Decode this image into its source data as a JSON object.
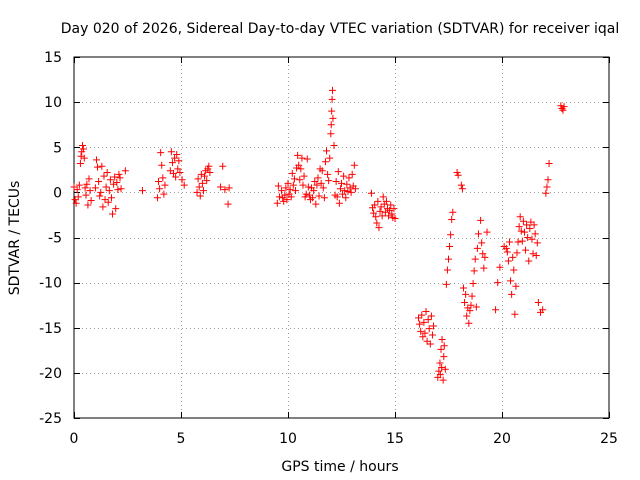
{
  "chart_data": {
    "type": "scatter",
    "title": "Day 020 of 2026, Sidereal Day-to-day VTEC variation (SDTVAR) for receiver iqal",
    "xlabel": "GPS time / hours",
    "ylabel": "SDTVAR / TECUs",
    "xlim": [
      0,
      25
    ],
    "ylim": [
      -25,
      15
    ],
    "xticks": [
      0,
      5,
      10,
      15,
      20,
      25
    ],
    "yticks": [
      15,
      10,
      5,
      0,
      -5,
      -10,
      -15,
      -20,
      -25
    ],
    "grid": true,
    "marker": "+",
    "color": "#ff0000",
    "series": [
      {
        "name": "SDTVAR",
        "points": [
          [
            0.0,
            0.6
          ],
          [
            0.05,
            -0.8
          ],
          [
            0.1,
            -1.2
          ],
          [
            0.15,
            0.3
          ],
          [
            0.2,
            -0.5
          ],
          [
            0.25,
            0.8
          ],
          [
            0.3,
            3.2
          ],
          [
            0.33,
            4.0
          ],
          [
            0.36,
            4.5
          ],
          [
            0.4,
            5.2
          ],
          [
            0.44,
            4.8
          ],
          [
            0.48,
            3.8
          ],
          [
            0.52,
            0.5
          ],
          [
            0.56,
            -0.3
          ],
          [
            0.6,
            0.9
          ],
          [
            0.65,
            -1.4
          ],
          [
            0.7,
            1.5
          ],
          [
            0.75,
            0.2
          ],
          [
            0.8,
            -0.9
          ],
          [
            1.0,
            0.5
          ],
          [
            1.05,
            3.6
          ],
          [
            1.1,
            2.8
          ],
          [
            1.15,
            1.2
          ],
          [
            1.2,
            -0.4
          ],
          [
            1.25,
            0.0
          ],
          [
            1.3,
            2.9
          ],
          [
            1.35,
            -1.6
          ],
          [
            1.4,
            1.8
          ],
          [
            1.45,
            -0.8
          ],
          [
            1.5,
            0.6
          ],
          [
            1.55,
            2.2
          ],
          [
            1.6,
            -1.1
          ],
          [
            1.65,
            0.2
          ],
          [
            1.7,
            1.4
          ],
          [
            1.75,
            -0.6
          ],
          [
            1.8,
            -2.4
          ],
          [
            1.85,
            0.9
          ],
          [
            1.9,
            1.7
          ],
          [
            1.95,
            -1.8
          ],
          [
            2.0,
            1.1
          ],
          [
            2.05,
            0.3
          ],
          [
            2.1,
            2.0
          ],
          [
            2.15,
            1.6
          ],
          [
            2.2,
            0.4
          ],
          [
            2.4,
            2.4
          ],
          [
            3.2,
            0.2
          ],
          [
            3.9,
            -0.6
          ],
          [
            3.95,
            1.2
          ],
          [
            4.0,
            0.4
          ],
          [
            4.05,
            4.4
          ],
          [
            4.1,
            3.0
          ],
          [
            4.15,
            1.6
          ],
          [
            4.2,
            -0.2
          ],
          [
            4.25,
            0.8
          ],
          [
            4.5,
            2.4
          ],
          [
            4.55,
            4.5
          ],
          [
            4.6,
            3.3
          ],
          [
            4.65,
            2.1
          ],
          [
            4.7,
            3.8
          ],
          [
            4.75,
            1.7
          ],
          [
            4.8,
            4.2
          ],
          [
            4.85,
            2.6
          ],
          [
            4.9,
            3.5
          ],
          [
            4.95,
            2.2
          ],
          [
            5.05,
            1.4
          ],
          [
            5.15,
            0.8
          ],
          [
            5.75,
            0.0
          ],
          [
            5.8,
            1.5
          ],
          [
            5.85,
            0.6
          ],
          [
            5.9,
            -0.4
          ],
          [
            5.95,
            2.0
          ],
          [
            6.0,
            1.0
          ],
          [
            6.05,
            0.2
          ],
          [
            6.1,
            1.8
          ],
          [
            6.15,
            2.4
          ],
          [
            6.2,
            1.3
          ],
          [
            6.25,
            2.6
          ],
          [
            6.3,
            2.9
          ],
          [
            6.35,
            2.2
          ],
          [
            6.85,
            0.6
          ],
          [
            6.95,
            2.9
          ],
          [
            7.05,
            0.3
          ],
          [
            7.2,
            -1.3
          ],
          [
            7.25,
            0.5
          ],
          [
            9.5,
            -1.2
          ],
          [
            9.55,
            0.7
          ],
          [
            9.6,
            -0.5
          ],
          [
            9.7,
            0.2
          ],
          [
            9.75,
            -0.6
          ],
          [
            9.8,
            -1.0
          ],
          [
            9.85,
            -0.3
          ],
          [
            9.9,
            0.5
          ],
          [
            9.95,
            -0.8
          ],
          [
            10.0,
            1.0
          ],
          [
            10.05,
            -0.2
          ],
          [
            10.1,
            0.3
          ],
          [
            10.15,
            -0.5
          ],
          [
            10.2,
            2.1
          ],
          [
            10.25,
            0.8
          ],
          [
            10.3,
            1.5
          ],
          [
            10.35,
            0.2
          ],
          [
            10.4,
            2.7
          ],
          [
            10.45,
            4.1
          ],
          [
            10.5,
            3.0
          ],
          [
            10.55,
            1.4
          ],
          [
            10.6,
            2.6
          ],
          [
            10.65,
            3.8
          ],
          [
            10.7,
            0.8
          ],
          [
            10.75,
            1.8
          ],
          [
            10.8,
            -0.5
          ],
          [
            10.85,
            -0.2
          ],
          [
            10.9,
            3.7
          ],
          [
            10.95,
            0.6
          ],
          [
            11.0,
            -0.3
          ],
          [
            11.05,
            -0.8
          ],
          [
            11.1,
            0.5
          ],
          [
            11.15,
            -0.6
          ],
          [
            11.2,
            0.2
          ],
          [
            11.25,
            1.2
          ],
          [
            11.3,
            -1.3
          ],
          [
            11.35,
            0.8
          ],
          [
            11.4,
            1.6
          ],
          [
            11.45,
            -0.4
          ],
          [
            11.5,
            2.6
          ],
          [
            11.55,
            1.0
          ],
          [
            11.6,
            2.4
          ],
          [
            11.65,
            0.5
          ],
          [
            11.7,
            -0.6
          ],
          [
            11.75,
            3.4
          ],
          [
            11.8,
            4.6
          ],
          [
            11.85,
            2.0
          ],
          [
            11.9,
            1.3
          ],
          [
            11.95,
            3.8
          ],
          [
            12.0,
            6.5
          ],
          [
            12.02,
            7.5
          ],
          [
            12.04,
            9.0
          ],
          [
            12.06,
            10.3
          ],
          [
            12.08,
            11.3
          ],
          [
            12.1,
            8.2
          ],
          [
            12.15,
            5.2
          ],
          [
            12.2,
            -0.3
          ],
          [
            12.25,
            1.2
          ],
          [
            12.3,
            -0.5
          ],
          [
            12.35,
            2.3
          ],
          [
            12.4,
            -1.2
          ],
          [
            12.45,
            0.4
          ],
          [
            12.5,
            1.0
          ],
          [
            12.55,
            -0.2
          ],
          [
            12.6,
            1.8
          ],
          [
            12.65,
            0.2
          ],
          [
            12.7,
            -0.6
          ],
          [
            12.75,
            0.9
          ],
          [
            12.8,
            0.1
          ],
          [
            12.85,
            1.6
          ],
          [
            12.9,
            0.5
          ],
          [
            12.95,
            0.0
          ],
          [
            13.0,
            2.0
          ],
          [
            13.05,
            0.7
          ],
          [
            13.1,
            3.0
          ],
          [
            13.15,
            0.4
          ],
          [
            13.9,
            -0.1
          ],
          [
            13.95,
            -1.7
          ],
          [
            14.0,
            -2.3
          ],
          [
            14.05,
            -1.4
          ],
          [
            14.1,
            -2.7
          ],
          [
            14.15,
            -3.4
          ],
          [
            14.2,
            -1.0
          ],
          [
            14.25,
            -3.9
          ],
          [
            14.3,
            -2.1
          ],
          [
            14.35,
            -1.6
          ],
          [
            14.4,
            -2.6
          ],
          [
            14.45,
            -0.5
          ],
          [
            14.5,
            -1.3
          ],
          [
            14.55,
            -2.2
          ],
          [
            14.6,
            -1.0
          ],
          [
            14.65,
            -1.8
          ],
          [
            14.7,
            -2.6
          ],
          [
            14.75,
            -2.0
          ],
          [
            14.8,
            -1.4
          ],
          [
            14.85,
            -2.4
          ],
          [
            14.9,
            -2.8
          ],
          [
            14.95,
            -1.8
          ],
          [
            15.0,
            -2.9
          ],
          [
            16.1,
            -13.9
          ],
          [
            16.15,
            -14.6
          ],
          [
            16.2,
            -15.4
          ],
          [
            16.25,
            -13.6
          ],
          [
            16.3,
            -16.0
          ],
          [
            16.35,
            -14.4
          ],
          [
            16.4,
            -15.6
          ],
          [
            16.45,
            -13.2
          ],
          [
            16.5,
            -16.5
          ],
          [
            16.55,
            -14.1
          ],
          [
            16.6,
            -15.1
          ],
          [
            16.65,
            -16.8
          ],
          [
            16.7,
            -13.7
          ],
          [
            16.75,
            -15.8
          ],
          [
            16.8,
            -14.8
          ],
          [
            17.0,
            -20.5
          ],
          [
            17.05,
            -19.8
          ],
          [
            17.1,
            -18.9
          ],
          [
            17.12,
            -20.2
          ],
          [
            17.15,
            -17.4
          ],
          [
            17.18,
            -19.4
          ],
          [
            17.2,
            -16.3
          ],
          [
            17.25,
            -20.8
          ],
          [
            17.28,
            -18.2
          ],
          [
            17.3,
            -17.0
          ],
          [
            17.35,
            -19.6
          ],
          [
            17.4,
            -10.2
          ],
          [
            17.45,
            -8.6
          ],
          [
            17.5,
            -7.4
          ],
          [
            17.55,
            -6.0
          ],
          [
            17.6,
            -4.7
          ],
          [
            17.65,
            -3.0
          ],
          [
            17.7,
            -2.2
          ],
          [
            17.9,
            2.2
          ],
          [
            17.95,
            1.9
          ],
          [
            18.1,
            0.8
          ],
          [
            18.15,
            0.4
          ],
          [
            18.2,
            -10.6
          ],
          [
            18.25,
            -12.2
          ],
          [
            18.3,
            -11.3
          ],
          [
            18.35,
            -13.7
          ],
          [
            18.4,
            -12.8
          ],
          [
            18.45,
            -14.5
          ],
          [
            18.5,
            -13.1
          ],
          [
            18.55,
            -12.5
          ],
          [
            18.6,
            -11.5
          ],
          [
            18.65,
            -10.1
          ],
          [
            18.7,
            -8.7
          ],
          [
            18.75,
            -7.4
          ],
          [
            18.8,
            -12.7
          ],
          [
            18.85,
            -6.2
          ],
          [
            18.9,
            -4.6
          ],
          [
            19.0,
            -3.1
          ],
          [
            19.05,
            -5.6
          ],
          [
            19.1,
            -6.8
          ],
          [
            19.15,
            -8.4
          ],
          [
            19.2,
            -7.2
          ],
          [
            19.3,
            -4.4
          ],
          [
            19.7,
            -13.0
          ],
          [
            19.8,
            -10.0
          ],
          [
            19.9,
            -8.3
          ],
          [
            20.1,
            -6.0
          ],
          [
            20.2,
            -6.2
          ],
          [
            20.25,
            -6.6
          ],
          [
            20.3,
            -7.6
          ],
          [
            20.35,
            -5.5
          ],
          [
            20.4,
            -9.8
          ],
          [
            20.45,
            -11.3
          ],
          [
            20.5,
            -7.2
          ],
          [
            20.55,
            -8.6
          ],
          [
            20.6,
            -13.5
          ],
          [
            20.65,
            -10.4
          ],
          [
            20.7,
            -6.7
          ],
          [
            20.75,
            -5.5
          ],
          [
            20.8,
            -3.8
          ],
          [
            20.85,
            -2.7
          ],
          [
            20.9,
            -4.3
          ],
          [
            20.95,
            -5.4
          ],
          [
            21.0,
            -3.2
          ],
          [
            21.05,
            -4.4
          ],
          [
            21.1,
            -6.4
          ],
          [
            21.15,
            -3.6
          ],
          [
            21.2,
            -5.0
          ],
          [
            21.25,
            -7.6
          ],
          [
            21.3,
            -4.0
          ],
          [
            21.35,
            -3.3
          ],
          [
            21.4,
            -5.2
          ],
          [
            21.45,
            -6.8
          ],
          [
            21.5,
            -3.6
          ],
          [
            21.55,
            -4.6
          ],
          [
            21.6,
            -7.0
          ],
          [
            21.65,
            -5.6
          ],
          [
            21.7,
            -12.2
          ],
          [
            21.8,
            -13.3
          ],
          [
            21.9,
            -13.0
          ],
          [
            22.05,
            -0.1
          ],
          [
            22.1,
            0.6
          ],
          [
            22.15,
            1.4
          ],
          [
            22.2,
            3.2
          ],
          [
            22.75,
            9.6
          ],
          [
            22.8,
            9.3
          ],
          [
            22.85,
            9.1
          ],
          [
            22.9,
            9.5
          ]
        ]
      }
    ]
  }
}
